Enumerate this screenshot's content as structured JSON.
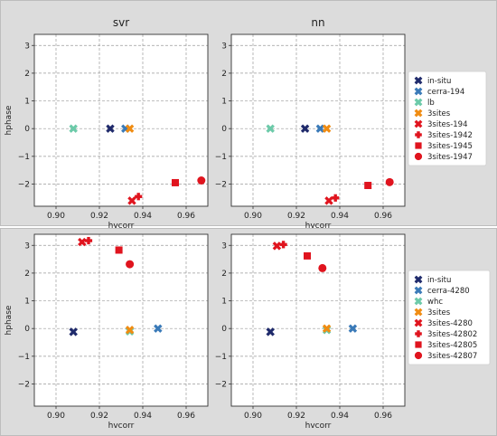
{
  "chart_data": [
    {
      "type": "scatter",
      "title": "svr",
      "xlabel": "hvcorr",
      "ylabel": "hphase",
      "xlim": [
        0.89,
        0.97
      ],
      "ylim": [
        -2.8,
        3.4
      ],
      "xticks": [
        "0.90",
        "0.92",
        "0.94",
        "0.96"
      ],
      "yticks": [
        "-2",
        "-1",
        "0",
        "1",
        "2",
        "3"
      ],
      "grid": true,
      "legend_group": "top",
      "series": [
        {
          "name": "in-situ",
          "x": [
            0.925
          ],
          "y": [
            0.0
          ]
        },
        {
          "name": "cerra-194",
          "x": [
            0.932
          ],
          "y": [
            0.0
          ]
        },
        {
          "name": "lb",
          "x": [
            0.908
          ],
          "y": [
            0.0
          ]
        },
        {
          "name": "3sites",
          "x": [
            0.934
          ],
          "y": [
            0.0
          ]
        },
        {
          "name": "3sites-194",
          "x": [
            0.935
          ],
          "y": [
            -2.6
          ]
        },
        {
          "name": "3sites-1942",
          "x": [
            0.938
          ],
          "y": [
            -2.45
          ]
        },
        {
          "name": "3sites-1945",
          "x": [
            0.955
          ],
          "y": [
            -1.95
          ]
        },
        {
          "name": "3sites-1947",
          "x": [
            0.967
          ],
          "y": [
            -1.87
          ]
        }
      ]
    },
    {
      "type": "scatter",
      "title": "nn",
      "xlabel": "hvcorr",
      "ylabel": "",
      "xlim": [
        0.89,
        0.97
      ],
      "ylim": [
        -2.8,
        3.4
      ],
      "xticks": [
        "0.90",
        "0.92",
        "0.94",
        "0.96"
      ],
      "yticks": [
        "-2",
        "-1",
        "0",
        "1",
        "2",
        "3"
      ],
      "grid": true,
      "legend_group": "top",
      "series": [
        {
          "name": "in-situ",
          "x": [
            0.924
          ],
          "y": [
            0.0
          ]
        },
        {
          "name": "cerra-194",
          "x": [
            0.931
          ],
          "y": [
            0.0
          ]
        },
        {
          "name": "lb",
          "x": [
            0.908
          ],
          "y": [
            0.0
          ]
        },
        {
          "name": "3sites",
          "x": [
            0.934
          ],
          "y": [
            0.0
          ]
        },
        {
          "name": "3sites-194",
          "x": [
            0.935
          ],
          "y": [
            -2.6
          ]
        },
        {
          "name": "3sites-1942",
          "x": [
            0.938
          ],
          "y": [
            -2.5
          ]
        },
        {
          "name": "3sites-1945",
          "x": [
            0.953
          ],
          "y": [
            -2.05
          ]
        },
        {
          "name": "3sites-1947",
          "x": [
            0.963
          ],
          "y": [
            -1.93
          ]
        }
      ]
    },
    {
      "type": "scatter",
      "title": "",
      "xlabel": "hvcorr",
      "ylabel": "hphase",
      "xlim": [
        0.89,
        0.97
      ],
      "ylim": [
        -2.8,
        3.4
      ],
      "xticks": [
        "0.90",
        "0.92",
        "0.94",
        "0.96"
      ],
      "yticks": [
        "-2",
        "-1",
        "0",
        "1",
        "2",
        "3"
      ],
      "grid": true,
      "legend_group": "bottom",
      "series": [
        {
          "name": "in-situ",
          "x": [
            0.908
          ],
          "y": [
            -0.12
          ]
        },
        {
          "name": "cerra-4280",
          "x": [
            0.947
          ],
          "y": [
            0.0
          ]
        },
        {
          "name": "whc",
          "x": [
            0.934
          ],
          "y": [
            -0.1
          ]
        },
        {
          "name": "3sites",
          "x": [
            0.934
          ],
          "y": [
            -0.05
          ]
        },
        {
          "name": "3sites-4280",
          "x": [
            0.912
          ],
          "y": [
            3.12
          ]
        },
        {
          "name": "3sites-42802",
          "x": [
            0.915
          ],
          "y": [
            3.17
          ]
        },
        {
          "name": "3sites-42805",
          "x": [
            0.929
          ],
          "y": [
            2.83
          ]
        },
        {
          "name": "3sites-42807",
          "x": [
            0.934
          ],
          "y": [
            2.32
          ]
        }
      ]
    },
    {
      "type": "scatter",
      "title": "",
      "xlabel": "hvcorr",
      "ylabel": "",
      "xlim": [
        0.89,
        0.97
      ],
      "ylim": [
        -2.8,
        3.4
      ],
      "xticks": [
        "0.90",
        "0.92",
        "0.94",
        "0.96"
      ],
      "yticks": [
        "-2",
        "-1",
        "0",
        "1",
        "2",
        "3"
      ],
      "grid": true,
      "legend_group": "bottom",
      "series": [
        {
          "name": "in-situ",
          "x": [
            0.908
          ],
          "y": [
            -0.12
          ]
        },
        {
          "name": "cerra-4280",
          "x": [
            0.946
          ],
          "y": [
            0.0
          ]
        },
        {
          "name": "whc",
          "x": [
            0.934
          ],
          "y": [
            -0.05
          ]
        },
        {
          "name": "3sites",
          "x": [
            0.934
          ],
          "y": [
            0.0
          ]
        },
        {
          "name": "3sites-4280",
          "x": [
            0.911
          ],
          "y": [
            2.98
          ]
        },
        {
          "name": "3sites-42802",
          "x": [
            0.914
          ],
          "y": [
            3.03
          ]
        },
        {
          "name": "3sites-42805",
          "x": [
            0.925
          ],
          "y": [
            2.62
          ]
        },
        {
          "name": "3sites-42807",
          "x": [
            0.932
          ],
          "y": [
            2.18
          ]
        }
      ]
    }
  ],
  "legends": {
    "top": [
      {
        "name": "in-situ",
        "color": "#1f2a6b",
        "marker": "x"
      },
      {
        "name": "cerra-194",
        "color": "#3a7ab8",
        "marker": "x"
      },
      {
        "name": "lb",
        "color": "#6ccaa9",
        "marker": "x"
      },
      {
        "name": "3sites",
        "color": "#f08c12",
        "marker": "x"
      },
      {
        "name": "3sites-194",
        "color": "#e0141e",
        "marker": "x"
      },
      {
        "name": "3sites-1942",
        "color": "#e0141e",
        "marker": "plus"
      },
      {
        "name": "3sites-1945",
        "color": "#e0141e",
        "marker": "square"
      },
      {
        "name": "3sites-1947",
        "color": "#e0141e",
        "marker": "circle"
      }
    ],
    "bottom": [
      {
        "name": "in-situ",
        "color": "#1f2a6b",
        "marker": "x"
      },
      {
        "name": "cerra-4280",
        "color": "#3a7ab8",
        "marker": "x"
      },
      {
        "name": "whc",
        "color": "#6ccaa9",
        "marker": "x"
      },
      {
        "name": "3sites",
        "color": "#f08c12",
        "marker": "x"
      },
      {
        "name": "3sites-4280",
        "color": "#e0141e",
        "marker": "x"
      },
      {
        "name": "3sites-42802",
        "color": "#e0141e",
        "marker": "plus"
      },
      {
        "name": "3sites-42805",
        "color": "#e0141e",
        "marker": "square"
      },
      {
        "name": "3sites-42807",
        "color": "#e0141e",
        "marker": "circle"
      }
    ]
  }
}
